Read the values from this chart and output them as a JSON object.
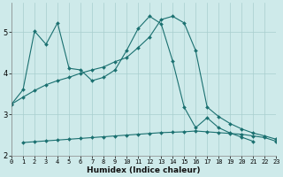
{
  "xlabel": "Humidex (Indice chaleur)",
  "bg_color": "#ceeaea",
  "grid_color": "#a8cece",
  "line_color": "#1a7070",
  "line1_x": [
    0,
    1,
    2,
    3,
    4,
    5,
    6,
    7,
    8,
    9,
    10,
    11,
    12,
    13,
    14,
    15,
    16,
    17,
    18,
    19,
    20,
    21
  ],
  "line1_y": [
    3.25,
    3.6,
    5.02,
    4.7,
    5.22,
    4.12,
    4.08,
    3.82,
    3.9,
    4.08,
    4.55,
    5.08,
    5.38,
    5.2,
    4.3,
    3.18,
    2.68,
    2.92,
    2.68,
    2.55,
    2.45,
    2.35
  ],
  "line2_x": [
    0,
    1,
    2,
    3,
    4,
    5,
    6,
    7,
    8,
    9,
    10,
    11,
    12,
    13,
    14,
    15,
    16,
    17,
    18,
    19,
    20,
    21,
    22,
    23
  ],
  "line2_y": [
    3.25,
    3.42,
    3.58,
    3.72,
    3.82,
    3.9,
    4.0,
    4.08,
    4.15,
    4.28,
    4.38,
    4.62,
    4.88,
    5.3,
    5.38,
    5.22,
    4.55,
    3.18,
    2.95,
    2.78,
    2.65,
    2.55,
    2.48,
    2.4
  ],
  "line3_x": [
    1,
    2,
    3,
    4,
    5,
    6,
    7,
    8,
    9,
    10,
    11,
    12,
    13,
    14,
    15,
    16,
    17,
    18,
    19,
    20,
    21,
    22,
    23
  ],
  "line3_y": [
    2.32,
    2.34,
    2.36,
    2.38,
    2.4,
    2.42,
    2.44,
    2.46,
    2.48,
    2.5,
    2.52,
    2.54,
    2.56,
    2.57,
    2.58,
    2.6,
    2.58,
    2.56,
    2.54,
    2.52,
    2.48,
    2.44,
    2.35
  ],
  "ylim": [
    2.0,
    5.7
  ],
  "xlim": [
    0,
    23
  ],
  "yticks": [
    2,
    3,
    4,
    5
  ],
  "xticks": [
    0,
    1,
    2,
    3,
    4,
    5,
    6,
    7,
    8,
    9,
    10,
    11,
    12,
    13,
    14,
    15,
    16,
    17,
    18,
    19,
    20,
    21,
    22,
    23
  ]
}
